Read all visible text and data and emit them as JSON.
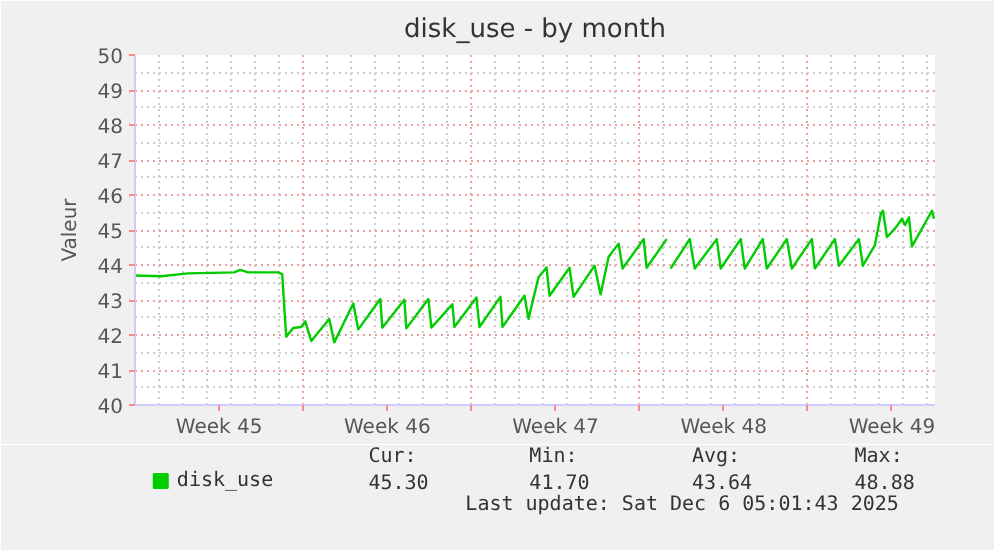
{
  "chart_data": {
    "type": "line",
    "title": "disk_use - by month",
    "ylabel": "Valeur",
    "xlim": [
      "2025-11-03T00:00",
      "2025-12-06T07:00"
    ],
    "ylim": [
      40,
      50
    ],
    "xticks": [
      {
        "value": "2025-11-06T12:00",
        "label": "Week 45"
      },
      {
        "value": "2025-11-10T00:00",
        "label": null
      },
      {
        "value": "2025-11-13T12:00",
        "label": "Week 46"
      },
      {
        "value": "2025-11-17T00:00",
        "label": null
      },
      {
        "value": "2025-11-20T12:00",
        "label": "Week 47"
      },
      {
        "value": "2025-11-24T00:00",
        "label": null
      },
      {
        "value": "2025-11-27T12:00",
        "label": "Week 48"
      },
      {
        "value": "2025-12-01T00:00",
        "label": null
      },
      {
        "value": "2025-12-04T12:00",
        "label": "Week 49"
      }
    ],
    "yticks": [
      40,
      41,
      42,
      43,
      44,
      45,
      46,
      47,
      48,
      49,
      50
    ],
    "grid": true,
    "legend": "bottom",
    "line_style": "solid",
    "series": [
      {
        "name": "disk_use",
        "color": "#00cc00",
        "x": [
          "2025-11-03T00:00",
          "2025-11-04T02:00",
          "2025-11-05T05:00",
          "2025-11-07T03:00",
          "2025-11-07T09:00",
          "2025-11-07T17:00",
          "2025-11-08T23:00",
          "2025-11-09T03:00",
          "2025-11-09T07:00",
          "2025-11-09T14:00",
          "2025-11-09T22:00",
          "2025-11-10T02:00",
          "2025-11-10T08:00",
          "2025-11-11T02:00",
          "2025-11-11T07:00",
          "2025-11-12T02:00",
          "2025-11-12T07:00",
          "2025-11-13T05:00",
          "2025-11-13T07:00",
          "2025-11-14T05:00",
          "2025-11-14T07:00",
          "2025-11-15T05:00",
          "2025-11-15T08:00",
          "2025-11-16T05:00",
          "2025-11-16T07:00",
          "2025-11-17T05:00",
          "2025-11-17T08:00",
          "2025-11-18T05:00",
          "2025-11-18T07:00",
          "2025-11-19T05:00",
          "2025-11-19T09:00",
          "2025-11-19T19:00",
          "2025-11-20T03:00",
          "2025-11-20T06:00",
          "2025-11-21T02:00",
          "2025-11-21T06:00",
          "2025-11-22T03:00",
          "2025-11-22T09:00",
          "2025-11-22T17:00",
          "2025-11-23T03:00",
          "2025-11-23T07:00",
          "2025-11-24T04:00",
          "2025-11-24T07:00",
          "2025-11-25T03:00",
          "2025-11-25T05:00",
          "2025-11-25T07:00",
          "2025-11-26T02:00",
          "2025-11-26T07:00",
          "2025-11-27T05:00",
          "2025-11-27T09:00",
          "2025-11-28T05:00",
          "2025-11-28T09:00",
          "2025-11-29T03:00",
          "2025-11-29T07:00",
          "2025-11-30T03:00",
          "2025-11-30T08:00",
          "2025-12-01T04:00",
          "2025-12-01T07:00",
          "2025-12-02T03:00",
          "2025-12-02T07:00",
          "2025-12-03T03:00",
          "2025-12-03T07:00",
          "2025-12-03T19:00",
          "2025-12-04T01:00",
          "2025-12-04T03:00",
          "2025-12-04T07:00",
          "2025-12-04T15:00",
          "2025-12-04T22:00",
          "2025-12-05T01:00",
          "2025-12-05T05:00",
          "2025-12-05T08:00",
          "2025-12-06T04:00",
          "2025-12-06T06:00"
        ],
        "values": [
          43.7,
          43.68,
          43.76,
          43.79,
          43.86,
          43.79,
          43.79,
          43.74,
          41.95,
          42.2,
          42.23,
          42.39,
          41.83,
          42.46,
          41.79,
          42.9,
          42.16,
          43.03,
          42.21,
          43.01,
          42.19,
          43.03,
          42.21,
          42.88,
          42.23,
          43.07,
          42.23,
          43.09,
          42.23,
          43.12,
          42.46,
          43.65,
          43.93,
          43.12,
          43.92,
          43.09,
          43.98,
          43.16,
          44.23,
          44.61,
          43.9,
          44.74,
          43.92,
          44.74,
          null,
          43.9,
          44.74,
          43.9,
          44.74,
          43.9,
          44.74,
          43.9,
          44.74,
          43.9,
          44.74,
          43.9,
          44.74,
          43.9,
          44.74,
          43.98,
          44.74,
          43.98,
          44.57,
          45.48,
          45.55,
          44.8,
          45.04,
          45.32,
          45.14,
          45.36,
          44.53,
          45.55,
          45.32
        ]
      }
    ],
    "annotations": [
      "Cur:",
      "Min:",
      "Avg:",
      "Max:",
      "45.30",
      "41.70",
      "43.64",
      "48.88",
      "Last update: Sat Dec  6 05:01:43 2025"
    ]
  }
}
